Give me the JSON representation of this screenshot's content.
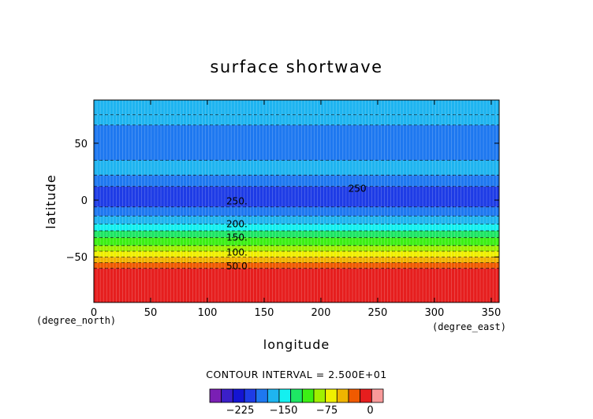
{
  "chart_data": {
    "type": "heatmap",
    "title": "surface shortwave",
    "xlabel": "longitude",
    "ylabel": "latitude",
    "x_unit": "(degree_east)",
    "y_unit": "(degree_north)",
    "xlim": [
      0,
      357
    ],
    "ylim": [
      -90,
      88
    ],
    "xticks": [
      0,
      50,
      100,
      150,
      200,
      250,
      300,
      350
    ],
    "yticks": [
      -50,
      0,
      50
    ],
    "contour_interval_text": "CONTOUR INTERVAL = 2.500E+01",
    "contour_levels": [
      -275,
      -250,
      -225,
      -200,
      -175,
      -150,
      -125,
      -100,
      -75,
      -50,
      -25,
      0
    ],
    "contour_labels": [
      {
        "text": "250.",
        "lon": 126,
        "lat": -1
      },
      {
        "text": "200.",
        "lon": 126,
        "lat": -21
      },
      {
        "text": "150.",
        "lon": 126,
        "lat": -33
      },
      {
        "text": "100.",
        "lon": 126,
        "lat": -46
      },
      {
        "text": "50.0",
        "lon": 126,
        "lat": -58
      },
      {
        "text": "250",
        "lon": 232,
        "lat": 10
      }
    ],
    "lat_bands": [
      {
        "lat_min": -90,
        "lat_max": -60,
        "value": 0
      },
      {
        "lat_min": -60,
        "lat_max": -55,
        "value": -25
      },
      {
        "lat_min": -55,
        "lat_max": -50,
        "value": -50
      },
      {
        "lat_min": -50,
        "lat_max": -45,
        "value": -75
      },
      {
        "lat_min": -45,
        "lat_max": -40,
        "value": -100
      },
      {
        "lat_min": -40,
        "lat_max": -33,
        "value": -125
      },
      {
        "lat_min": -33,
        "lat_max": -27,
        "value": -150
      },
      {
        "lat_min": -27,
        "lat_max": -21,
        "value": -175
      },
      {
        "lat_min": -21,
        "lat_max": -14,
        "value": -200
      },
      {
        "lat_min": -14,
        "lat_max": -6,
        "value": -225
      },
      {
        "lat_min": -6,
        "lat_max": 12,
        "value": -250
      },
      {
        "lat_min": 12,
        "lat_max": 22,
        "value": -225
      },
      {
        "lat_min": 22,
        "lat_max": 35,
        "value": -200
      },
      {
        "lat_min": 35,
        "lat_max": 66,
        "value": -225
      },
      {
        "lat_min": 66,
        "lat_max": 75,
        "value": -200
      },
      {
        "lat_min": 75,
        "lat_max": 88,
        "value": -200
      }
    ],
    "colorbar": {
      "colors": [
        "#7a1fb4",
        "#3b1fc8",
        "#1414d2",
        "#1e3ce6",
        "#1e78f0",
        "#1eb4f0",
        "#14f0f0",
        "#1ee664",
        "#3cf014",
        "#a0f000",
        "#f0f000",
        "#f0b400",
        "#f05a00",
        "#e61e1e",
        "#f89a9a"
      ],
      "tick_labels": [
        "-225",
        "-150",
        "-75",
        "0"
      ]
    },
    "grid": true
  }
}
